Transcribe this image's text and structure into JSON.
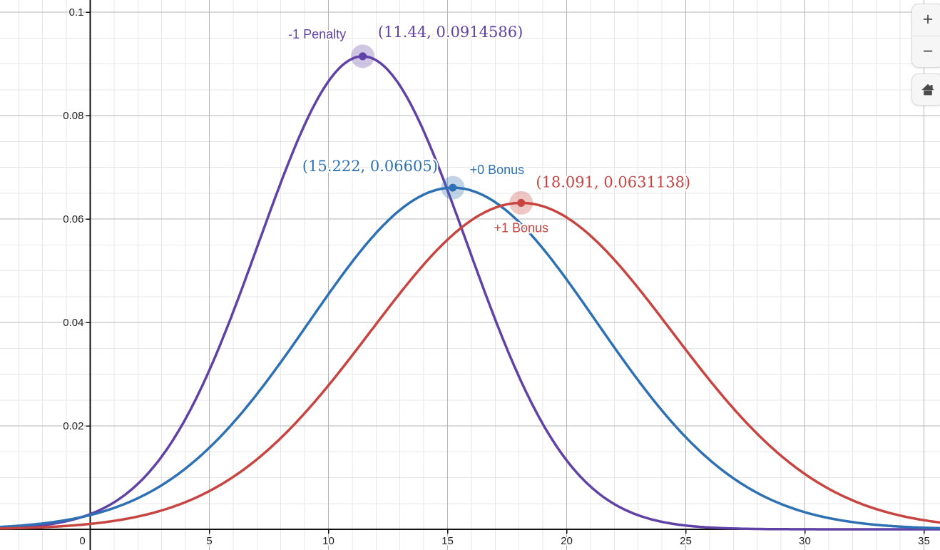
{
  "controls": {
    "zoom_in": "+",
    "zoom_out": "−"
  },
  "colors": {
    "purple": "#6042a6",
    "blue": "#2d70b3",
    "red": "#c74440",
    "grid_minor": "#e7e7e7",
    "grid_major": "#b5b5b5",
    "axis": "#111111",
    "tick_text": "#222222",
    "button_icon": "#4a4a4a"
  },
  "chart_data": {
    "type": "line",
    "title": "",
    "xlabel": "",
    "ylabel": "",
    "grid": true,
    "x_visible_range": [
      -3.8,
      35.7
    ],
    "y_visible_range": [
      -0.004,
      0.1024
    ],
    "x_ticks": [
      0,
      5,
      10,
      15,
      20,
      25,
      30,
      35
    ],
    "y_ticks": [
      0.02,
      0.04,
      0.06,
      0.08,
      0.1
    ],
    "x_minor_step": 1,
    "y_minor_step": 0.005,
    "series": [
      {
        "id": "penalty-minus-1",
        "name": "-1 Penalty",
        "color": "#6042a6",
        "curve": "normal-pdf",
        "mean": 11.44,
        "sigma": 4.362,
        "peak_y": 0.0914586,
        "marked_point": {
          "x": 11.44,
          "y": 0.0914586
        },
        "point_label": "(11.44, 0.0914586)"
      },
      {
        "id": "bonus-0",
        "name": "+0 Bonus",
        "color": "#2d70b3",
        "curve": "normal-pdf",
        "mean": 15.222,
        "sigma": 6.04,
        "peak_y": 0.06605,
        "marked_point": {
          "x": 15.222,
          "y": 0.06605
        },
        "point_label": "(15.222, 0.06605)"
      },
      {
        "id": "bonus-plus-1",
        "name": "+1 Bonus",
        "color": "#c74440",
        "curve": "normal-pdf",
        "mean": 18.091,
        "sigma": 6.321,
        "peak_y": 0.0631138,
        "marked_point": {
          "x": 18.091,
          "y": 0.0631138
        },
        "point_label": "(18.091, 0.0631138)"
      }
    ]
  }
}
